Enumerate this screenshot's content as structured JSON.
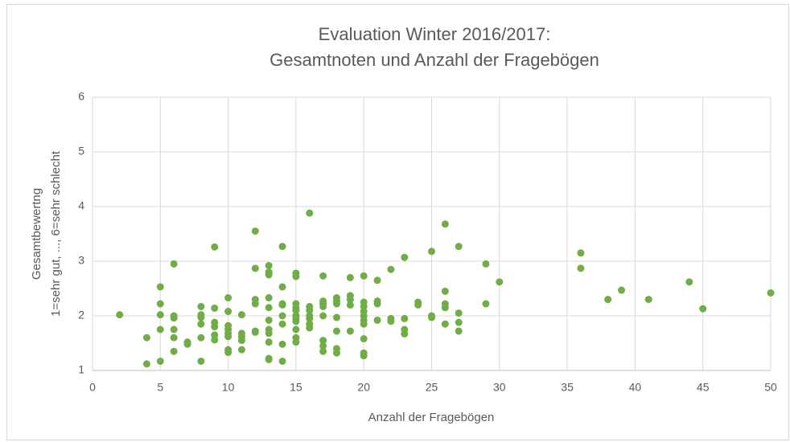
{
  "chart_data": {
    "type": "scatter",
    "title": [
      "Evaluation Winter 2016/2017:",
      "Gesamtnoten und Anzahl der Fragebögen"
    ],
    "xlabel": "Anzahl der Fragebögen",
    "ylabel": [
      "Gesamtbewertng",
      "1=sehr gut, ..., 6=sehr schlecht"
    ],
    "color": "#70ad47",
    "xlim": [
      0,
      50
    ],
    "xticks": [
      0,
      5,
      10,
      15,
      20,
      25,
      30,
      35,
      40,
      45,
      50
    ],
    "ylim": [
      1,
      6
    ],
    "yticks": [
      1,
      2,
      3,
      4,
      5,
      6
    ],
    "grid": true,
    "x": [
      2,
      4,
      4,
      5,
      5,
      5,
      5,
      5,
      6,
      6,
      6,
      6,
      6,
      6,
      7,
      7,
      8,
      8,
      8,
      8,
      8,
      8,
      9,
      9,
      9,
      9,
      9,
      9,
      10,
      10,
      10,
      10,
      10,
      10,
      10,
      10,
      11,
      11,
      11,
      11,
      11,
      12,
      12,
      12,
      12,
      12,
      12,
      13,
      13,
      13,
      13,
      13,
      13,
      13,
      13,
      13,
      13,
      13,
      14,
      14,
      14,
      14,
      14,
      14,
      14,
      14,
      15,
      15,
      15,
      15,
      15,
      15,
      15,
      15,
      15,
      15,
      15,
      16,
      16,
      16,
      16,
      16,
      16,
      16,
      17,
      17,
      17,
      17,
      17,
      17,
      17,
      17,
      18,
      18,
      18,
      18,
      18,
      18,
      18,
      19,
      19,
      19,
      19,
      19,
      20,
      20,
      20,
      20,
      20,
      20,
      20,
      20,
      20,
      20,
      21,
      21,
      21,
      21,
      22,
      22,
      22,
      23,
      23,
      23,
      23,
      24,
      24,
      25,
      25,
      25,
      26,
      26,
      26,
      26,
      26,
      27,
      27,
      27,
      27,
      29,
      29,
      30,
      36,
      36,
      38,
      39,
      41,
      44,
      45,
      50
    ],
    "y": [
      2.02,
      1.6,
      1.12,
      2.53,
      2.22,
      2.02,
      1.75,
      1.17,
      2.95,
      2.0,
      1.96,
      1.75,
      1.6,
      1.35,
      1.52,
      1.48,
      2.17,
      2.02,
      1.97,
      1.85,
      1.6,
      1.17,
      3.26,
      2.14,
      1.88,
      1.8,
      1.65,
      1.56,
      2.33,
      2.08,
      1.82,
      1.75,
      1.68,
      1.62,
      1.38,
      1.33,
      2.02,
      1.68,
      1.62,
      1.55,
      1.38,
      3.55,
      2.87,
      2.3,
      2.22,
      1.72,
      1.7,
      2.92,
      2.8,
      2.75,
      2.33,
      2.15,
      1.92,
      1.75,
      1.68,
      1.52,
      1.22,
      1.2,
      3.27,
      2.53,
      2.22,
      2.2,
      2.0,
      1.85,
      1.48,
      1.17,
      2.78,
      2.72,
      2.22,
      2.15,
      2.1,
      2.0,
      1.95,
      1.9,
      1.75,
      1.6,
      1.52,
      3.88,
      2.17,
      2.1,
      2.0,
      1.95,
      1.85,
      1.78,
      2.73,
      2.27,
      2.22,
      2.17,
      2.0,
      1.55,
      1.45,
      1.35,
      2.33,
      2.27,
      2.22,
      1.97,
      1.72,
      1.4,
      1.32,
      2.7,
      2.37,
      2.3,
      2.2,
      1.72,
      2.73,
      2.25,
      2.17,
      2.08,
      2.0,
      1.92,
      1.85,
      1.58,
      1.32,
      1.27,
      2.65,
      2.27,
      2.22,
      1.92,
      2.85,
      1.95,
      1.9,
      3.07,
      1.95,
      1.75,
      1.67,
      2.25,
      2.2,
      3.18,
      2.0,
      1.97,
      3.68,
      2.45,
      2.22,
      2.15,
      1.85,
      3.27,
      2.05,
      1.88,
      1.72,
      2.95,
      2.22,
      2.62,
      3.15,
      2.87,
      2.3,
      2.47,
      2.3,
      2.62,
      2.13,
      2.42
    ]
  }
}
